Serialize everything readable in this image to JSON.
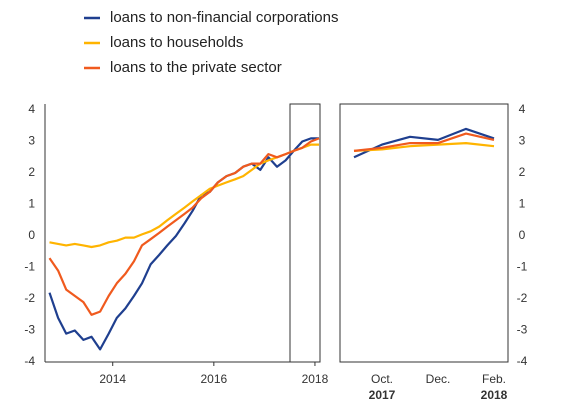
{
  "chart_data": [
    {
      "type": "line",
      "x": [
        2012.75,
        2012.92,
        2013.08,
        2013.25,
        2013.42,
        2013.58,
        2013.75,
        2013.92,
        2014.08,
        2014.25,
        2014.42,
        2014.58,
        2014.75,
        2014.92,
        2015.08,
        2015.25,
        2015.42,
        2015.58,
        2015.75,
        2015.92,
        2016.08,
        2016.25,
        2016.42,
        2016.58,
        2016.75,
        2016.92,
        2017.08,
        2017.25,
        2017.42,
        2017.58,
        2017.75,
        2017.92,
        2018.08
      ],
      "series": [
        {
          "name": "loans to non-financial corporations",
          "color": "#1f3f8f",
          "values": [
            -1.8,
            -2.6,
            -3.1,
            -3.0,
            -3.3,
            -3.2,
            -3.6,
            -3.1,
            -2.6,
            -2.3,
            -1.9,
            -1.5,
            -0.9,
            -0.6,
            -0.3,
            0.0,
            0.4,
            0.8,
            1.3,
            1.4,
            1.7,
            1.9,
            2.0,
            2.2,
            2.3,
            2.1,
            2.5,
            2.2,
            2.4,
            2.7,
            3.0,
            3.1,
            3.1
          ]
        },
        {
          "name": "loans to households",
          "color": "#ffb400",
          "values": [
            -0.2,
            -0.25,
            -0.3,
            -0.25,
            -0.3,
            -0.35,
            -0.3,
            -0.2,
            -0.15,
            -0.05,
            -0.05,
            0.05,
            0.15,
            0.3,
            0.5,
            0.7,
            0.9,
            1.1,
            1.3,
            1.5,
            1.6,
            1.7,
            1.8,
            1.9,
            2.1,
            2.3,
            2.4,
            2.5,
            2.6,
            2.7,
            2.8,
            2.9,
            2.9
          ]
        },
        {
          "name": "loans to the private sector",
          "color": "#f05a1e",
          "values": [
            -0.7,
            -1.1,
            -1.7,
            -1.9,
            -2.1,
            -2.5,
            -2.4,
            -1.9,
            -1.5,
            -1.2,
            -0.8,
            -0.3,
            -0.1,
            0.1,
            0.3,
            0.5,
            0.7,
            0.9,
            1.2,
            1.4,
            1.7,
            1.9,
            2.0,
            2.2,
            2.3,
            2.3,
            2.6,
            2.5,
            2.6,
            2.7,
            2.8,
            3.0,
            3.1
          ]
        }
      ],
      "xlim": [
        2012.7,
        2018.1
      ],
      "xticks": [
        2014,
        2016,
        2018
      ],
      "ylim": [
        -4,
        4
      ],
      "yticks": [
        -4,
        -3,
        -2,
        -1,
        0,
        1,
        2,
        3,
        4
      ]
    },
    {
      "type": "line",
      "categories": [
        null,
        "Oct.",
        null,
        "Dec.",
        null,
        "Feb."
      ],
      "years": [
        null,
        "2017",
        null,
        null,
        null,
        "2018"
      ],
      "series": [
        {
          "color": "#1f3f8f",
          "values": [
            2.5,
            2.9,
            3.15,
            3.05,
            3.4,
            3.1
          ]
        },
        {
          "color": "#ffb400",
          "values": [
            2.7,
            2.75,
            2.85,
            2.9,
            2.95,
            2.85
          ]
        },
        {
          "color": "#f05a1e",
          "values": [
            2.7,
            2.8,
            2.95,
            2.95,
            3.25,
            3.05
          ]
        }
      ],
      "ylim": [
        -4,
        4
      ],
      "yticks": [
        -4,
        -3,
        -2,
        -1,
        0,
        1,
        2,
        3,
        4
      ]
    }
  ]
}
